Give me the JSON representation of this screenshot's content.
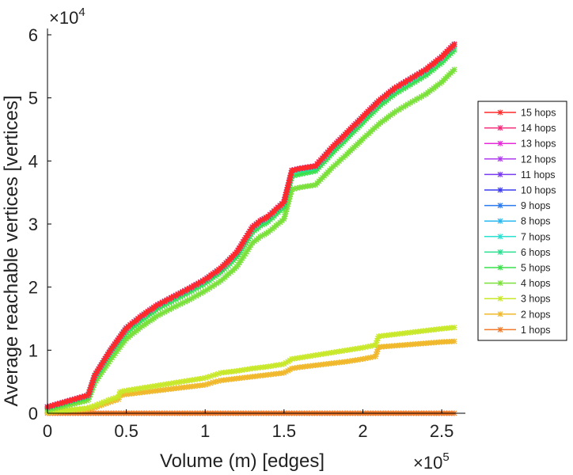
{
  "chart_data": {
    "type": "line",
    "title": "",
    "xlabel": "Volume (m) [edges]",
    "ylabel": "Average reachable vertices [vertices]",
    "x_exponent_label": "×10",
    "x_exponent": "5",
    "y_exponent_label": "×10",
    "y_exponent": "4",
    "xlim": [
      0,
      2.65
    ],
    "ylim": [
      0,
      6.1
    ],
    "x_ticks": [
      0,
      0.5,
      1,
      1.5,
      2,
      2.5
    ],
    "x_tick_labels": [
      "0",
      "0.5",
      "1",
      "1.5",
      "2",
      "2.5"
    ],
    "y_ticks": [
      0,
      1,
      2,
      3,
      4,
      5,
      6
    ],
    "y_tick_labels": [
      "0",
      "1",
      "2",
      "3",
      "4",
      "5",
      "6"
    ],
    "x_units": "×10^5 edges",
    "y_units": "×10^4 vertices",
    "grid": false,
    "legend_position": "right",
    "series": [
      {
        "name": "15 hops",
        "color": "#ff2a2a",
        "x": [
          0,
          0.25,
          0.26,
          0.3,
          0.4,
          0.5,
          0.6,
          0.7,
          0.8,
          0.9,
          1.0,
          1.1,
          1.2,
          1.3,
          1.35,
          1.4,
          1.5,
          1.55,
          1.6,
          1.7,
          1.8,
          1.9,
          2.0,
          2.1,
          2.2,
          2.3,
          2.4,
          2.5,
          2.58
        ],
        "y": [
          0.1,
          0.28,
          0.3,
          0.6,
          1.0,
          1.35,
          1.55,
          1.72,
          1.85,
          1.98,
          2.12,
          2.3,
          2.55,
          2.95,
          3.05,
          3.12,
          3.35,
          3.85,
          3.88,
          3.92,
          4.2,
          4.45,
          4.7,
          4.95,
          5.15,
          5.3,
          5.45,
          5.65,
          5.85
        ]
      },
      {
        "name": "14 hops",
        "color": "#f52a7a",
        "x": [
          0,
          0.25,
          0.26,
          0.3,
          0.4,
          0.5,
          0.6,
          0.7,
          0.8,
          0.9,
          1.0,
          1.1,
          1.2,
          1.3,
          1.35,
          1.4,
          1.5,
          1.55,
          1.6,
          1.7,
          1.8,
          1.9,
          2.0,
          2.1,
          2.2,
          2.3,
          2.4,
          2.5,
          2.58
        ],
        "y": [
          0.1,
          0.28,
          0.3,
          0.6,
          1.0,
          1.35,
          1.55,
          1.72,
          1.85,
          1.98,
          2.12,
          2.3,
          2.55,
          2.95,
          3.05,
          3.12,
          3.35,
          3.85,
          3.88,
          3.92,
          4.2,
          4.45,
          4.7,
          4.95,
          5.15,
          5.3,
          5.45,
          5.65,
          5.85
        ]
      },
      {
        "name": "13 hops",
        "color": "#e52ad8",
        "x": [
          0,
          0.25,
          0.26,
          0.3,
          0.4,
          0.5,
          0.6,
          0.7,
          0.8,
          0.9,
          1.0,
          1.1,
          1.2,
          1.3,
          1.35,
          1.4,
          1.5,
          1.55,
          1.6,
          1.7,
          1.8,
          1.9,
          2.0,
          2.1,
          2.2,
          2.3,
          2.4,
          2.5,
          2.58
        ],
        "y": [
          0.1,
          0.28,
          0.3,
          0.6,
          1.0,
          1.35,
          1.55,
          1.72,
          1.85,
          1.98,
          2.12,
          2.3,
          2.55,
          2.95,
          3.05,
          3.12,
          3.35,
          3.85,
          3.88,
          3.92,
          4.2,
          4.45,
          4.7,
          4.95,
          5.15,
          5.3,
          5.45,
          5.65,
          5.85
        ]
      },
      {
        "name": "12 hops",
        "color": "#b03af0",
        "x": [
          0,
          0.25,
          0.26,
          0.3,
          0.4,
          0.5,
          0.6,
          0.7,
          0.8,
          0.9,
          1.0,
          1.1,
          1.2,
          1.3,
          1.35,
          1.4,
          1.5,
          1.55,
          1.6,
          1.7,
          1.8,
          1.9,
          2.0,
          2.1,
          2.2,
          2.3,
          2.4,
          2.5,
          2.58
        ],
        "y": [
          0.1,
          0.28,
          0.3,
          0.6,
          1.0,
          1.35,
          1.55,
          1.72,
          1.85,
          1.98,
          2.12,
          2.3,
          2.55,
          2.95,
          3.05,
          3.12,
          3.35,
          3.85,
          3.88,
          3.92,
          4.2,
          4.45,
          4.7,
          4.95,
          5.15,
          5.3,
          5.45,
          5.65,
          5.85
        ]
      },
      {
        "name": "11 hops",
        "color": "#7a3af0",
        "x": [
          0,
          0.25,
          0.26,
          0.3,
          0.4,
          0.5,
          0.6,
          0.7,
          0.8,
          0.9,
          1.0,
          1.1,
          1.2,
          1.3,
          1.35,
          1.4,
          1.5,
          1.55,
          1.6,
          1.7,
          1.8,
          1.9,
          2.0,
          2.1,
          2.2,
          2.3,
          2.4,
          2.5,
          2.58
        ],
        "y": [
          0.1,
          0.28,
          0.3,
          0.6,
          1.0,
          1.35,
          1.55,
          1.72,
          1.85,
          1.98,
          2.12,
          2.3,
          2.55,
          2.95,
          3.05,
          3.12,
          3.35,
          3.85,
          3.88,
          3.92,
          4.2,
          4.45,
          4.7,
          4.95,
          5.15,
          5.3,
          5.45,
          5.65,
          5.85
        ]
      },
      {
        "name": "10 hops",
        "color": "#3a3af0",
        "x": [
          0,
          0.25,
          0.26,
          0.3,
          0.4,
          0.5,
          0.6,
          0.7,
          0.8,
          0.9,
          1.0,
          1.1,
          1.2,
          1.3,
          1.35,
          1.4,
          1.5,
          1.55,
          1.6,
          1.7,
          1.8,
          1.9,
          2.0,
          2.1,
          2.2,
          2.3,
          2.4,
          2.5,
          2.58
        ],
        "y": [
          0.1,
          0.28,
          0.3,
          0.6,
          1.0,
          1.35,
          1.55,
          1.72,
          1.85,
          1.98,
          2.12,
          2.3,
          2.55,
          2.95,
          3.05,
          3.12,
          3.35,
          3.85,
          3.88,
          3.92,
          4.2,
          4.45,
          4.7,
          4.95,
          5.15,
          5.3,
          5.45,
          5.65,
          5.85
        ]
      },
      {
        "name": "9 hops",
        "color": "#2a7af0",
        "x": [
          0,
          0.25,
          0.26,
          0.3,
          0.4,
          0.5,
          0.6,
          0.7,
          0.8,
          0.9,
          1.0,
          1.1,
          1.2,
          1.3,
          1.35,
          1.4,
          1.5,
          1.55,
          1.6,
          1.7,
          1.8,
          1.9,
          2.0,
          2.1,
          2.2,
          2.3,
          2.4,
          2.5,
          2.58
        ],
        "y": [
          0.1,
          0.28,
          0.3,
          0.6,
          1.0,
          1.35,
          1.55,
          1.72,
          1.85,
          1.98,
          2.12,
          2.3,
          2.55,
          2.95,
          3.05,
          3.12,
          3.35,
          3.85,
          3.88,
          3.92,
          4.2,
          4.45,
          4.7,
          4.95,
          5.15,
          5.3,
          5.45,
          5.65,
          5.85
        ]
      },
      {
        "name": "8 hops",
        "color": "#2ab8f0",
        "x": [
          0,
          0.25,
          0.26,
          0.3,
          0.4,
          0.5,
          0.6,
          0.7,
          0.8,
          0.9,
          1.0,
          1.1,
          1.2,
          1.3,
          1.35,
          1.4,
          1.5,
          1.55,
          1.6,
          1.7,
          1.8,
          1.9,
          2.0,
          2.1,
          2.2,
          2.3,
          2.4,
          2.5,
          2.58
        ],
        "y": [
          0.1,
          0.28,
          0.3,
          0.6,
          1.0,
          1.35,
          1.55,
          1.72,
          1.85,
          1.98,
          2.12,
          2.3,
          2.55,
          2.95,
          3.05,
          3.12,
          3.35,
          3.85,
          3.88,
          3.92,
          4.2,
          4.45,
          4.7,
          4.95,
          5.15,
          5.3,
          5.45,
          5.65,
          5.85
        ]
      },
      {
        "name": "7 hops",
        "color": "#2ae0d0",
        "x": [
          0,
          0.25,
          0.26,
          0.3,
          0.4,
          0.5,
          0.6,
          0.7,
          0.8,
          0.9,
          1.0,
          1.1,
          1.2,
          1.3,
          1.35,
          1.4,
          1.5,
          1.55,
          1.6,
          1.7,
          1.8,
          1.9,
          2.0,
          2.1,
          2.2,
          2.3,
          2.4,
          2.5,
          2.58
        ],
        "y": [
          0.1,
          0.28,
          0.3,
          0.6,
          1.0,
          1.35,
          1.55,
          1.72,
          1.85,
          1.98,
          2.12,
          2.3,
          2.55,
          2.95,
          3.05,
          3.12,
          3.35,
          3.85,
          3.88,
          3.92,
          4.2,
          4.45,
          4.7,
          4.95,
          5.15,
          5.3,
          5.45,
          5.65,
          5.85
        ]
      },
      {
        "name": "6 hops",
        "color": "#2ae090",
        "x": [
          0,
          0.25,
          0.26,
          0.3,
          0.4,
          0.5,
          0.6,
          0.7,
          0.8,
          0.9,
          1.0,
          1.1,
          1.2,
          1.3,
          1.35,
          1.4,
          1.5,
          1.55,
          1.6,
          1.7,
          1.8,
          1.9,
          2.0,
          2.1,
          2.2,
          2.3,
          2.4,
          2.5,
          2.58
        ],
        "y": [
          0.1,
          0.27,
          0.29,
          0.58,
          0.98,
          1.33,
          1.52,
          1.7,
          1.83,
          1.96,
          2.1,
          2.28,
          2.52,
          2.92,
          3.02,
          3.09,
          3.32,
          3.82,
          3.85,
          3.89,
          4.17,
          4.42,
          4.67,
          4.92,
          5.12,
          5.27,
          5.42,
          5.62,
          5.82
        ]
      },
      {
        "name": "5 hops",
        "color": "#3ae04a",
        "x": [
          0,
          0.25,
          0.26,
          0.3,
          0.4,
          0.5,
          0.6,
          0.7,
          0.8,
          0.9,
          1.0,
          1.1,
          1.2,
          1.3,
          1.35,
          1.4,
          1.5,
          1.55,
          1.6,
          1.7,
          1.8,
          1.9,
          2.0,
          2.1,
          2.2,
          2.3,
          2.4,
          2.5,
          2.58
        ],
        "y": [
          0.08,
          0.25,
          0.27,
          0.55,
          0.95,
          1.28,
          1.48,
          1.66,
          1.79,
          1.92,
          2.06,
          2.24,
          2.48,
          2.87,
          2.97,
          3.04,
          3.27,
          3.76,
          3.79,
          3.84,
          4.11,
          4.36,
          4.61,
          4.86,
          5.06,
          5.21,
          5.36,
          5.56,
          5.76
        ]
      },
      {
        "name": "4 hops",
        "color": "#7ae03a",
        "x": [
          0,
          0.25,
          0.26,
          0.3,
          0.4,
          0.5,
          0.6,
          0.7,
          0.8,
          0.9,
          1.0,
          1.1,
          1.2,
          1.3,
          1.35,
          1.4,
          1.5,
          1.55,
          1.6,
          1.7,
          1.8,
          1.9,
          2.0,
          2.1,
          2.2,
          2.3,
          2.4,
          2.5,
          2.58
        ],
        "y": [
          0.05,
          0.2,
          0.22,
          0.48,
          0.85,
          1.18,
          1.38,
          1.55,
          1.68,
          1.8,
          1.94,
          2.1,
          2.32,
          2.7,
          2.8,
          2.87,
          3.08,
          3.55,
          3.58,
          3.62,
          3.88,
          4.11,
          4.35,
          4.58,
          4.77,
          4.92,
          5.06,
          5.25,
          5.45
        ]
      },
      {
        "name": "3 hops",
        "color": "#c8e82a",
        "x": [
          0,
          0.25,
          0.3,
          0.4,
          0.45,
          0.46,
          0.5,
          0.6,
          0.7,
          0.8,
          0.9,
          1.0,
          1.05,
          1.1,
          1.2,
          1.3,
          1.4,
          1.5,
          1.55,
          1.6,
          1.7,
          1.8,
          1.9,
          2.0,
          2.08,
          2.1,
          2.2,
          2.3,
          2.4,
          2.5,
          2.58
        ],
        "y": [
          0.02,
          0.08,
          0.12,
          0.22,
          0.26,
          0.34,
          0.36,
          0.4,
          0.44,
          0.48,
          0.52,
          0.56,
          0.6,
          0.64,
          0.67,
          0.71,
          0.74,
          0.78,
          0.86,
          0.88,
          0.92,
          0.96,
          1.0,
          1.04,
          1.08,
          1.22,
          1.25,
          1.28,
          1.31,
          1.34,
          1.36
        ]
      },
      {
        "name": "2 hops",
        "color": "#f0b82a",
        "x": [
          0,
          0.25,
          0.3,
          0.4,
          0.45,
          0.46,
          0.5,
          0.6,
          0.7,
          0.8,
          0.9,
          1.0,
          1.05,
          1.1,
          1.2,
          1.3,
          1.4,
          1.5,
          1.55,
          1.6,
          1.7,
          1.8,
          1.9,
          2.0,
          2.08,
          2.1,
          2.2,
          2.3,
          2.4,
          2.5,
          2.58
        ],
        "y": [
          0.01,
          0.06,
          0.09,
          0.18,
          0.22,
          0.28,
          0.3,
          0.33,
          0.36,
          0.39,
          0.42,
          0.45,
          0.49,
          0.52,
          0.55,
          0.58,
          0.61,
          0.64,
          0.71,
          0.73,
          0.76,
          0.79,
          0.82,
          0.86,
          0.9,
          1.05,
          1.07,
          1.09,
          1.11,
          1.13,
          1.14
        ]
      },
      {
        "name": "1 hops",
        "color": "#f07a2a",
        "x": [
          0,
          0.5,
          1.0,
          1.5,
          2.0,
          2.58
        ],
        "y": [
          0.0,
          0.0,
          0.0,
          0.0,
          0.0,
          0.0
        ]
      }
    ]
  }
}
